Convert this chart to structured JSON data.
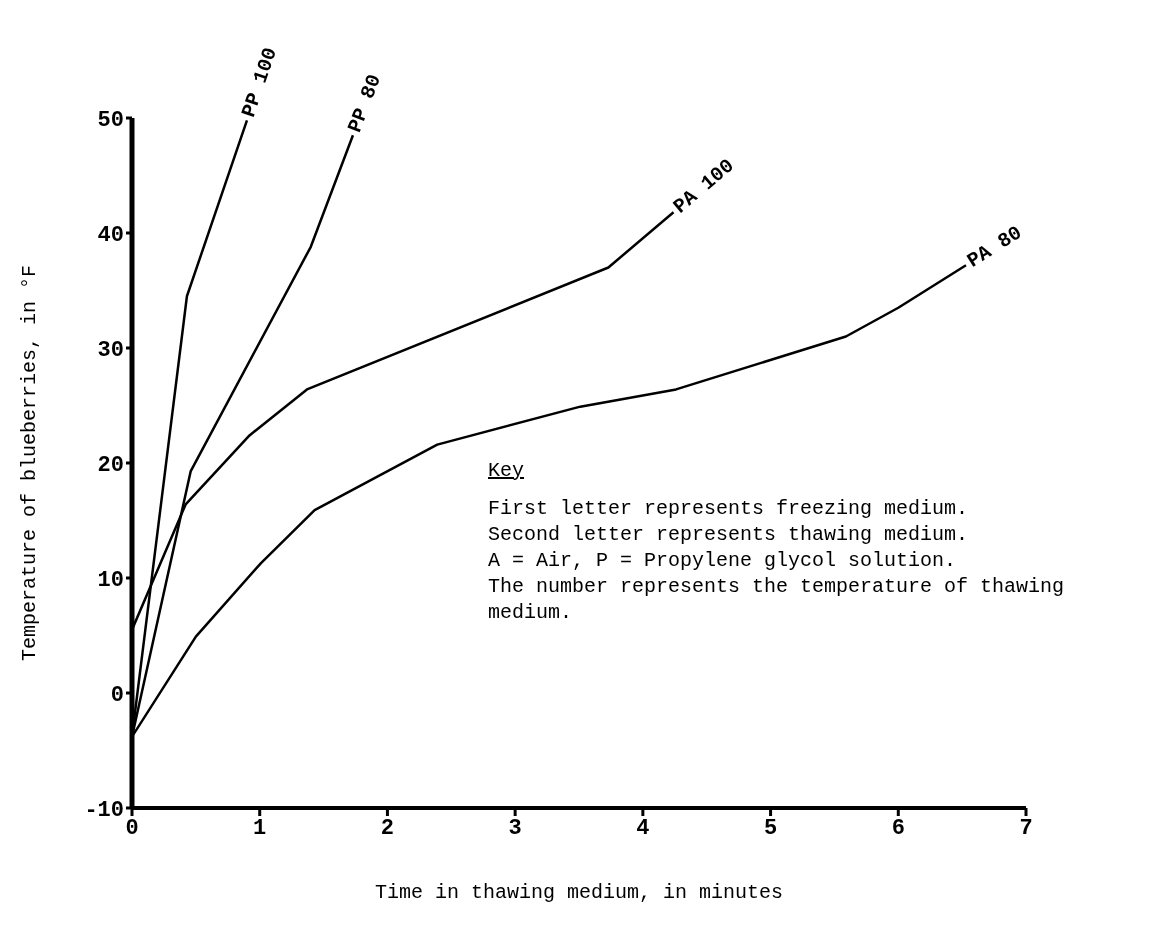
{
  "chart_data": {
    "type": "line",
    "xlabel": "Time in thawing medium, in minutes",
    "ylabel": "Temperature of blueberries, in °F",
    "xlim": [
      0,
      7
    ],
    "xticks": [
      0,
      1,
      2,
      3,
      4,
      5,
      6,
      7
    ],
    "ylim": [
      -10,
      50
    ],
    "yticks": [
      -10,
      0,
      10,
      20,
      30,
      40,
      50
    ],
    "grid": false,
    "marker": "none",
    "line_style": "solid",
    "series": [
      {
        "name": "PP 100",
        "color": "#000000",
        "x": [
          0,
          0.43,
          0.9
        ],
        "values": [
          -3.8,
          34.5,
          49.8
        ]
      },
      {
        "name": "PP 80",
        "color": "#000000",
        "x": [
          0,
          0.46,
          1.4,
          1.73
        ],
        "values": [
          -3.8,
          19.3,
          38.8,
          48.5
        ]
      },
      {
        "name": "PA 100",
        "color": "#000000",
        "x": [
          0,
          0.42,
          0.92,
          1.37,
          3.73,
          4.24
        ],
        "values": [
          5.5,
          16.4,
          22.4,
          26.4,
          37.0,
          41.8
        ]
      },
      {
        "name": "PA 80",
        "color": "#000000",
        "x": [
          0,
          0.5,
          1.01,
          1.43,
          2.39,
          3.51,
          4.26,
          5.59,
          6.0,
          6.53
        ],
        "values": [
          -3.8,
          4.9,
          11.3,
          15.9,
          21.6,
          24.9,
          26.4,
          31.0,
          33.5,
          37.2
        ]
      }
    ],
    "annotations": [
      "Key",
      "First letter represents freezing medium.",
      "Second letter represents thawing medium.",
      "A = Air, P = Propylene glycol solution.",
      "The number represents the temperature of thawing medium."
    ]
  }
}
